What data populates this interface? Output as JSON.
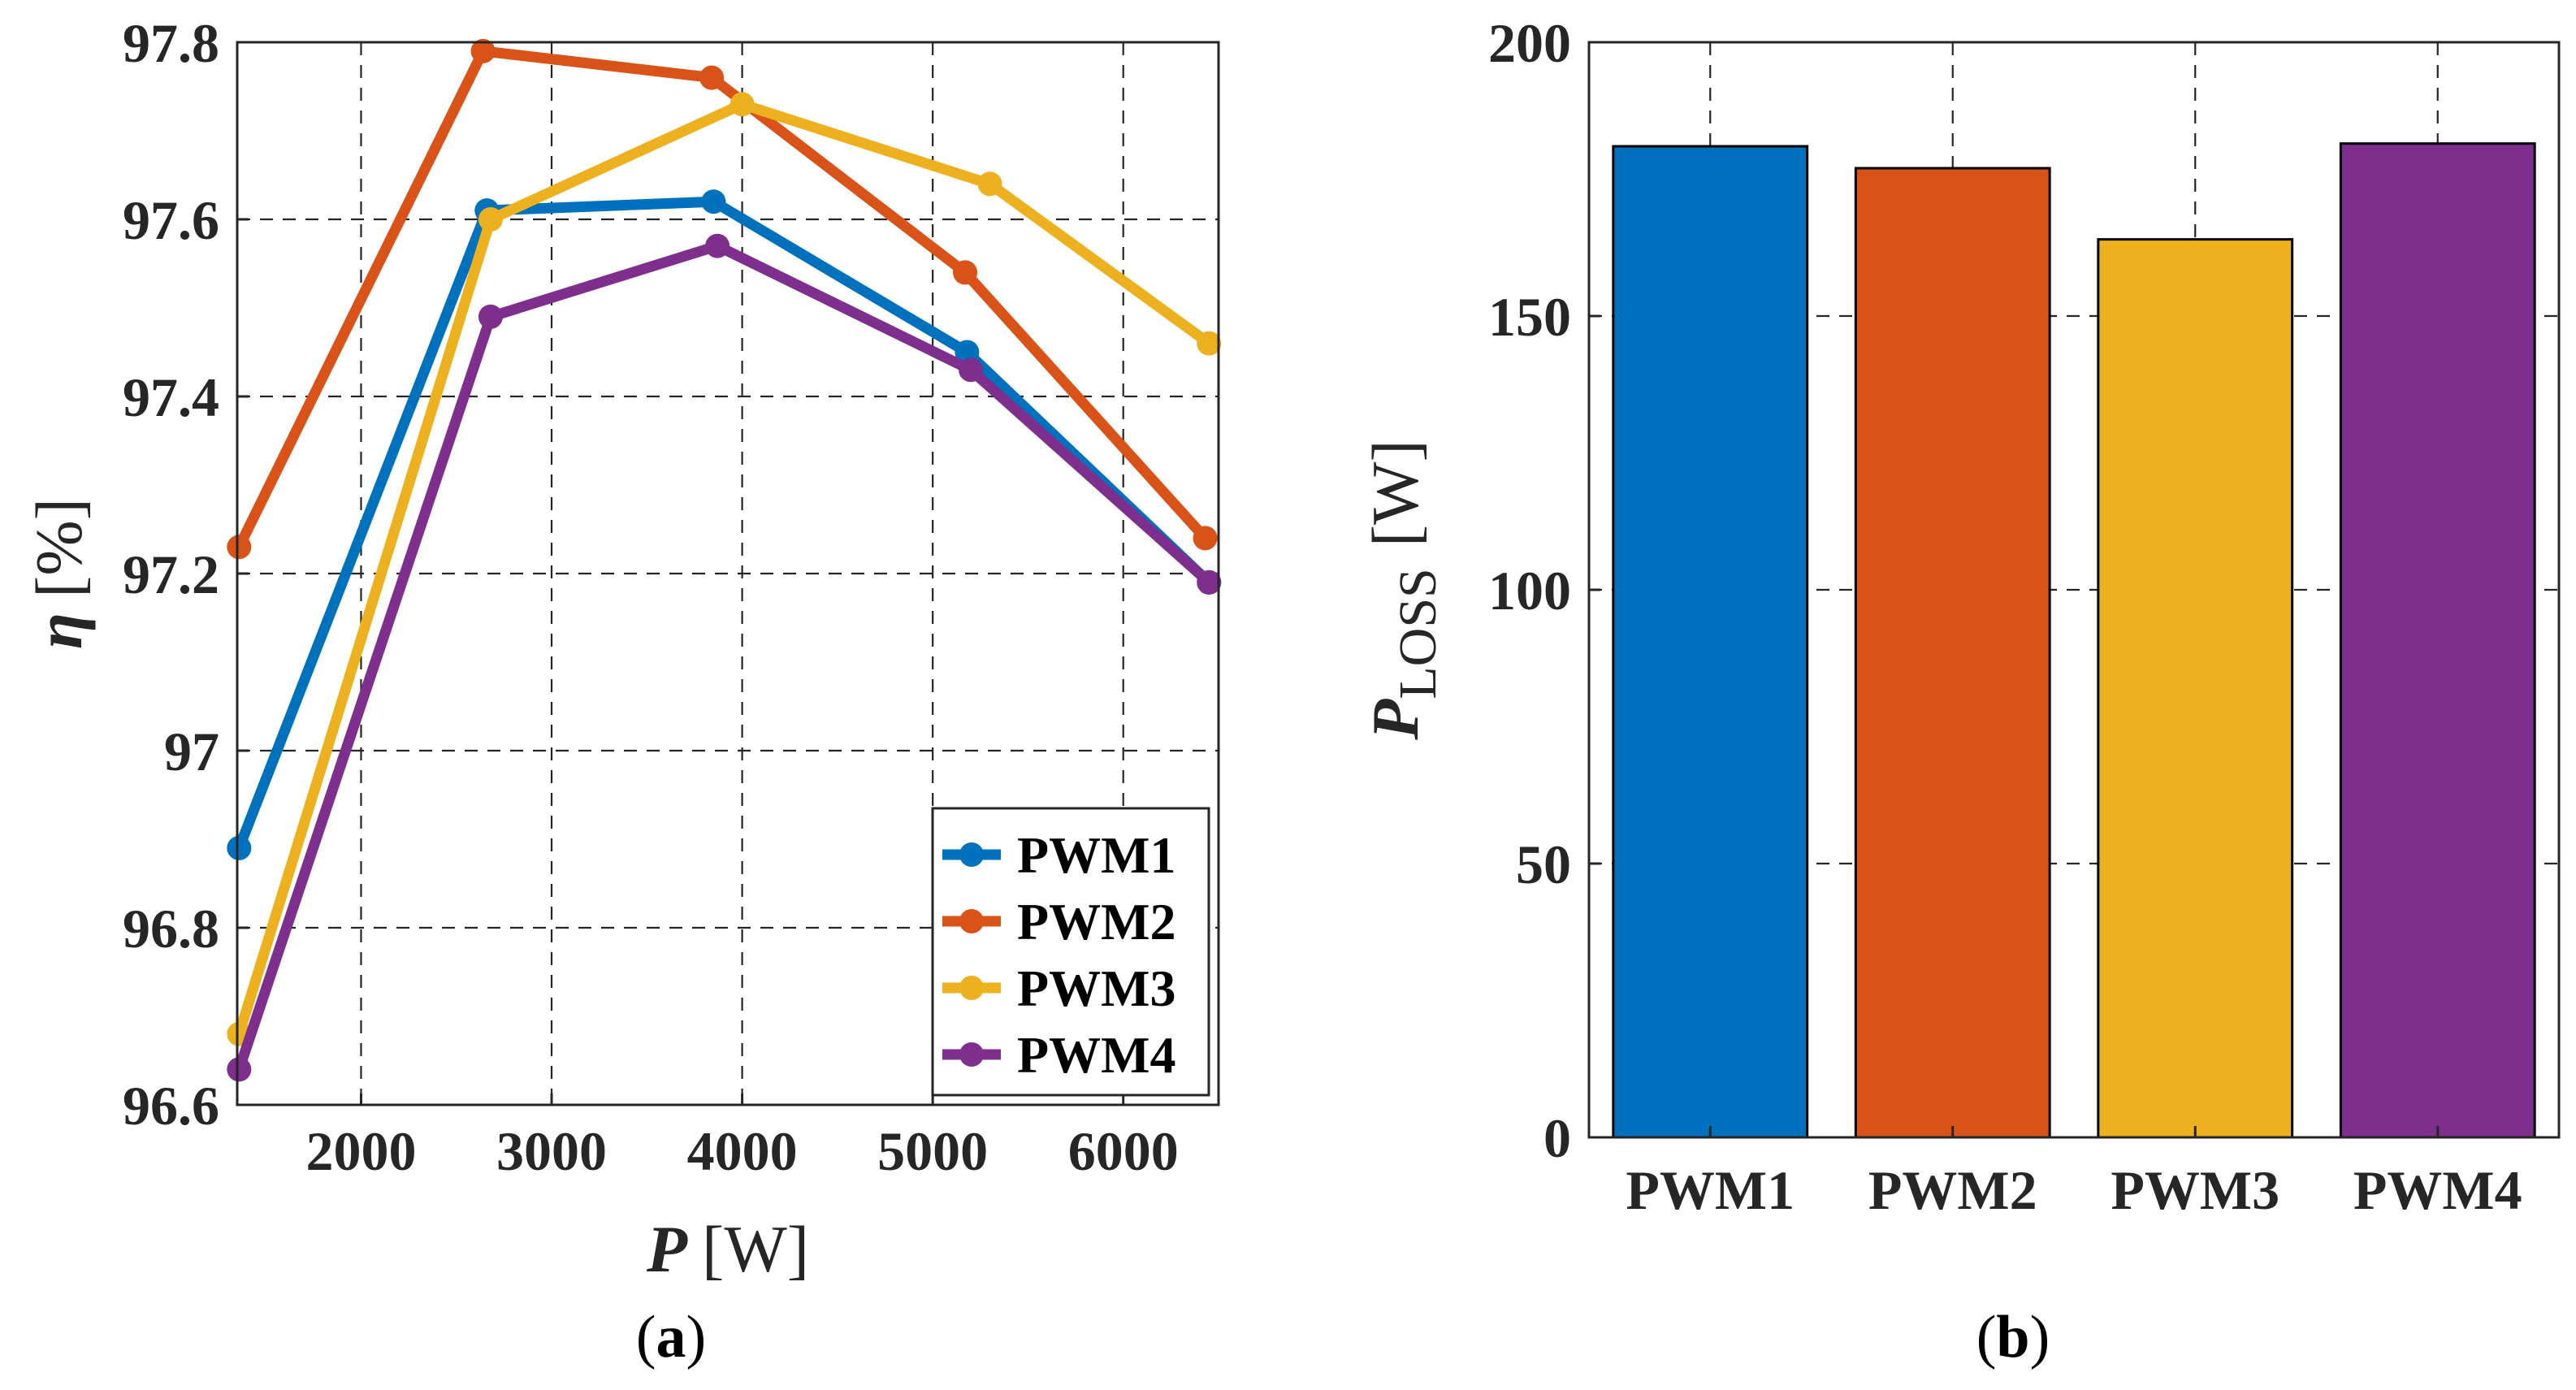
{
  "chart_data": [
    {
      "type": "line",
      "caption_open": "(",
      "caption_letter": "a",
      "caption_close": ")",
      "xlabel_symbol": "P",
      "xlabel_unit": "[W]",
      "ylabel_symbol": "η",
      "ylabel_unit": "[%]",
      "xlim": [
        1350,
        6500
      ],
      "ylim": [
        96.6,
        97.8
      ],
      "xticks": [
        2000,
        3000,
        4000,
        5000,
        6000
      ],
      "xtick_labels": [
        "2000",
        "3000",
        "4000",
        "5000",
        "6000"
      ],
      "yticks": [
        96.6,
        96.8,
        97.0,
        97.2,
        97.4,
        97.6,
        97.8
      ],
      "ytick_labels": [
        "96.6",
        "96.8",
        "97",
        "97.2",
        "97.4",
        "97.6",
        "97.8"
      ],
      "grid": true,
      "legend_position": "bottom-right",
      "series": [
        {
          "name": "PWM1",
          "color": "#0072BD",
          "x": [
            1360,
            2660,
            3850,
            5180,
            6450
          ],
          "y": [
            96.89,
            97.61,
            97.62,
            97.45,
            97.19
          ]
        },
        {
          "name": "PWM2",
          "color": "#D95319",
          "x": [
            1360,
            2640,
            3840,
            5170,
            6430
          ],
          "y": [
            97.23,
            97.79,
            97.76,
            97.54,
            97.24
          ]
        },
        {
          "name": "PWM3",
          "color": "#EDB120",
          "x": [
            1360,
            2680,
            4000,
            5300,
            6450
          ],
          "y": [
            96.68,
            97.6,
            97.73,
            97.64,
            97.46
          ]
        },
        {
          "name": "PWM4",
          "color": "#7E2F8E",
          "x": [
            1360,
            2680,
            3870,
            5200,
            6450
          ],
          "y": [
            96.64,
            97.49,
            97.57,
            97.43,
            97.19
          ]
        }
      ]
    },
    {
      "type": "bar",
      "caption_open": "(",
      "caption_letter": "b",
      "caption_close": ")",
      "ylabel_symbol": "P",
      "ylabel_subscript": "LOSS",
      "ylabel_unit": "[W]",
      "categories": [
        "PWM1",
        "PWM2",
        "PWM3",
        "PWM4"
      ],
      "values": [
        181,
        177,
        164,
        181.5
      ],
      "colors": [
        "#0072BD",
        "#D95319",
        "#EDB120",
        "#7E2F8E"
      ],
      "ylim": [
        0,
        200
      ],
      "yticks": [
        0,
        50,
        100,
        150,
        200
      ],
      "ytick_labels": [
        "0",
        "50",
        "100",
        "150",
        "200"
      ],
      "grid": true
    }
  ]
}
